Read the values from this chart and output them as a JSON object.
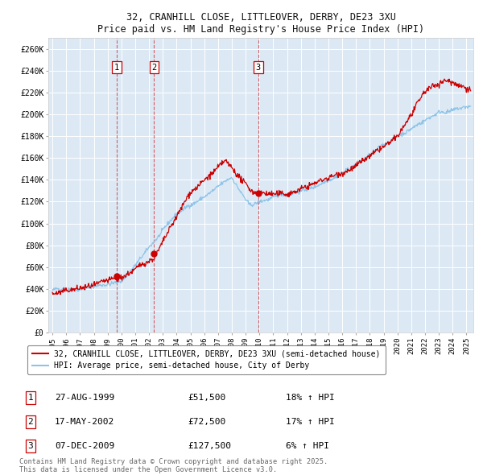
{
  "title_line1": "32, CRANHILL CLOSE, LITTLEOVER, DERBY, DE23 3XU",
  "title_line2": "Price paid vs. HM Land Registry's House Price Index (HPI)",
  "background_color": "#dce9f5",
  "grid_color": "#ffffff",
  "sale_color": "#cc0000",
  "hpi_color": "#8ec4e8",
  "sale_dates_num": [
    1999.65,
    2002.37,
    2009.92
  ],
  "sale_prices": [
    51500,
    72500,
    127500
  ],
  "sale_labels": [
    "1",
    "2",
    "3"
  ],
  "legend_sale": "32, CRANHILL CLOSE, LITTLEOVER, DERBY, DE23 3XU (semi-detached house)",
  "legend_hpi": "HPI: Average price, semi-detached house, City of Derby",
  "table_data": [
    [
      "1",
      "27-AUG-1999",
      "£51,500",
      "18% ↑ HPI"
    ],
    [
      "2",
      "17-MAY-2002",
      "£72,500",
      "17% ↑ HPI"
    ],
    [
      "3",
      "07-DEC-2009",
      "£127,500",
      "6% ↑ HPI"
    ]
  ],
  "footer": "Contains HM Land Registry data © Crown copyright and database right 2025.\nThis data is licensed under the Open Government Licence v3.0.",
  "ylim": [
    0,
    270000
  ],
  "xlim_start": 1994.7,
  "xlim_end": 2025.5,
  "yticks": [
    0,
    20000,
    40000,
    60000,
    80000,
    100000,
    120000,
    140000,
    160000,
    180000,
    200000,
    220000,
    240000,
    260000
  ],
  "ytick_labels": [
    "£0",
    "£20K",
    "£40K",
    "£60K",
    "£80K",
    "£100K",
    "£120K",
    "£140K",
    "£160K",
    "£180K",
    "£200K",
    "£220K",
    "£240K",
    "£260K"
  ],
  "xticks": [
    1995,
    1996,
    1997,
    1998,
    1999,
    2000,
    2001,
    2002,
    2003,
    2004,
    2005,
    2006,
    2007,
    2008,
    2009,
    2010,
    2011,
    2012,
    2013,
    2014,
    2015,
    2016,
    2017,
    2018,
    2019,
    2020,
    2021,
    2022,
    2023,
    2024,
    2025
  ]
}
